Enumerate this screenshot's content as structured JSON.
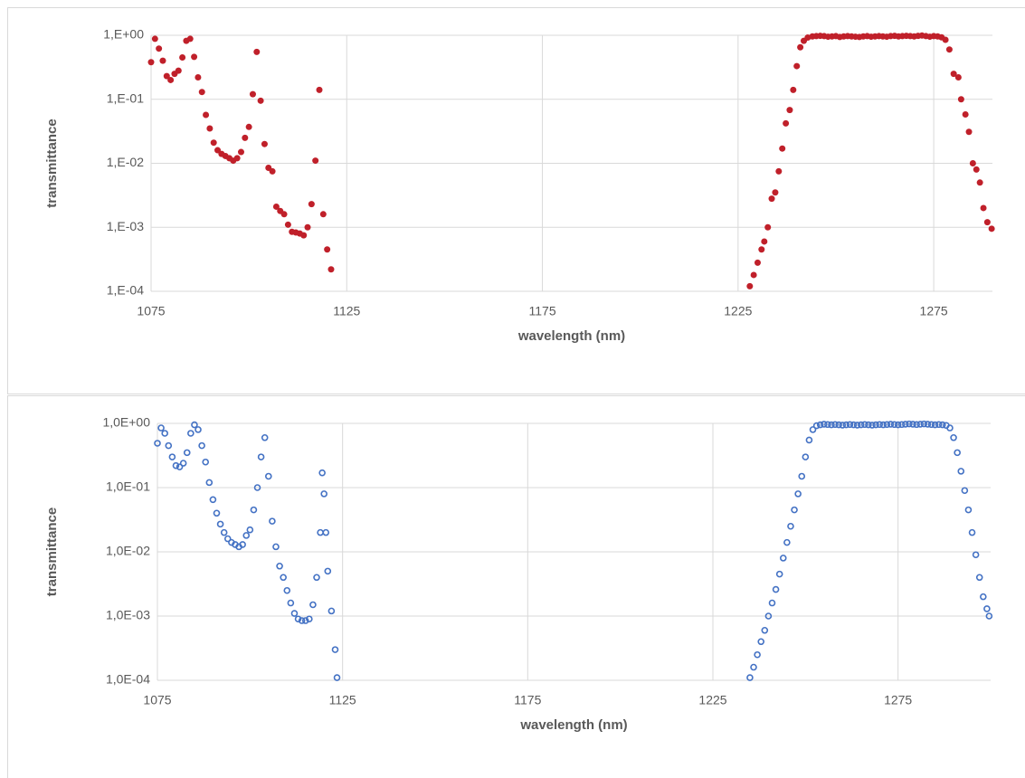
{
  "chart_data": [
    {
      "type": "scatter",
      "marker": "filled",
      "color": "#c0202a",
      "log_y": true,
      "grid": true,
      "xlabel": "wavelength (nm)",
      "ylabel": "transmittance",
      "xlim": [
        1075,
        1290
      ],
      "xticks": [
        1075,
        1125,
        1175,
        1225,
        1275
      ],
      "ylim": [
        0.0001,
        1
      ],
      "yticks": [
        {
          "value": 1,
          "label": "1,E+00"
        },
        {
          "value": 0.1,
          "label": "1,E-01"
        },
        {
          "value": 0.01,
          "label": "1,E-02"
        },
        {
          "value": 0.001,
          "label": "1,E-03"
        },
        {
          "value": 0.0001,
          "label": "1,E-04"
        }
      ],
      "x": [
        1075,
        1076,
        1077,
        1078,
        1079,
        1080,
        1081,
        1082,
        1083,
        1084,
        1085,
        1086,
        1087,
        1088,
        1089,
        1090,
        1091,
        1092,
        1093,
        1094,
        1095,
        1096,
        1097,
        1098,
        1099,
        1100,
        1101,
        1102,
        1103,
        1104,
        1105,
        1106,
        1107,
        1108,
        1109,
        1110,
        1111,
        1112,
        1113,
        1114,
        1115,
        1116,
        1117,
        1118,
        1119,
        1120,
        1121,
        1228,
        1229,
        1230,
        1231,
        1231.7,
        1232.6,
        1233.6,
        1234.5,
        1235.4,
        1236.3,
        1237.2,
        1238.2,
        1239.1,
        1240,
        1240.9,
        1241.8,
        1242.8,
        1244,
        1245,
        1246,
        1247,
        1248,
        1249,
        1250,
        1251,
        1252,
        1253,
        1254,
        1255,
        1256,
        1257,
        1258,
        1259,
        1260,
        1261,
        1262,
        1263,
        1264,
        1265,
        1266,
        1267,
        1268,
        1269,
        1270,
        1271,
        1272,
        1273,
        1274,
        1275,
        1276,
        1277,
        1278,
        1279,
        1280.1,
        1281.3,
        1282,
        1283.1,
        1284,
        1285,
        1285.9,
        1286.8,
        1287.7,
        1288.7,
        1289.8
      ],
      "values": [
        0.38,
        0.88,
        0.62,
        0.4,
        0.23,
        0.2,
        0.25,
        0.28,
        0.45,
        0.82,
        0.88,
        0.46,
        0.22,
        0.13,
        0.057,
        0.035,
        0.021,
        0.016,
        0.014,
        0.013,
        0.012,
        0.011,
        0.012,
        0.015,
        0.025,
        0.037,
        0.12,
        0.55,
        0.095,
        0.02,
        0.0085,
        0.0075,
        0.0021,
        0.0018,
        0.0016,
        0.0011,
        0.00085,
        0.00083,
        0.0008,
        0.00075,
        0.001,
        0.0023,
        0.011,
        0.14,
        0.0016,
        0.00045,
        0.00022,
        0.00012,
        0.00018,
        0.00028,
        0.00045,
        0.0006,
        0.001,
        0.0028,
        0.0035,
        0.0075,
        0.017,
        0.042,
        0.068,
        0.14,
        0.33,
        0.65,
        0.82,
        0.92,
        0.96,
        0.97,
        0.98,
        0.97,
        0.95,
        0.96,
        0.97,
        0.94,
        0.96,
        0.97,
        0.96,
        0.95,
        0.94,
        0.96,
        0.97,
        0.95,
        0.96,
        0.97,
        0.96,
        0.95,
        0.97,
        0.98,
        0.96,
        0.97,
        0.98,
        0.97,
        0.96,
        0.98,
        0.99,
        0.97,
        0.95,
        0.97,
        0.96,
        0.93,
        0.85,
        0.6,
        0.25,
        0.22,
        0.1,
        0.058,
        0.031,
        0.01,
        0.008,
        0.005,
        0.002,
        0.0012,
        0.00095
      ]
    },
    {
      "type": "scatter",
      "marker": "open",
      "color": "#4472c4",
      "log_y": true,
      "grid": true,
      "xlabel": "wavelength (nm)",
      "ylabel": "transmittance",
      "xlim": [
        1075,
        1300
      ],
      "xticks": [
        1075,
        1125,
        1175,
        1225,
        1275
      ],
      "ylim": [
        0.0001,
        1
      ],
      "yticks": [
        {
          "value": 1,
          "label": "1,0E+00"
        },
        {
          "value": 0.1,
          "label": "1,0E-01"
        },
        {
          "value": 0.01,
          "label": "1,0E-02"
        },
        {
          "value": 0.001,
          "label": "1,0E-03"
        },
        {
          "value": 0.0001,
          "label": "1,0E-04"
        }
      ],
      "x": [
        1075,
        1076,
        1077,
        1078,
        1079,
        1080,
        1081,
        1082,
        1083,
        1084,
        1085,
        1086,
        1087,
        1088,
        1089,
        1090,
        1091,
        1092,
        1093,
        1094,
        1095,
        1096,
        1097,
        1098,
        1099,
        1100,
        1101,
        1102,
        1103,
        1104,
        1105,
        1106,
        1107,
        1108,
        1109,
        1110,
        1111,
        1112,
        1113,
        1114,
        1115,
        1116,
        1117,
        1118,
        1119,
        1119.5,
        1120,
        1120.5,
        1121,
        1122,
        1123,
        1123.5,
        1235,
        1236,
        1237,
        1238,
        1239,
        1240,
        1241,
        1242,
        1243,
        1244,
        1245,
        1246,
        1247,
        1248,
        1249,
        1250,
        1251,
        1252,
        1253,
        1254,
        1255,
        1256,
        1257,
        1258,
        1259,
        1260,
        1261,
        1262,
        1263,
        1264,
        1265,
        1266,
        1267,
        1268,
        1269,
        1270,
        1271,
        1272,
        1273,
        1274,
        1275,
        1276,
        1277,
        1278,
        1279,
        1280,
        1281,
        1282,
        1283,
        1284,
        1285,
        1286,
        1287,
        1288,
        1289,
        1290,
        1291,
        1292,
        1293,
        1294,
        1295,
        1296,
        1297,
        1298,
        1299,
        1299.6
      ],
      "values": [
        0.49,
        0.85,
        0.7,
        0.45,
        0.3,
        0.22,
        0.21,
        0.24,
        0.35,
        0.7,
        0.95,
        0.8,
        0.45,
        0.25,
        0.12,
        0.065,
        0.04,
        0.027,
        0.02,
        0.016,
        0.014,
        0.013,
        0.012,
        0.013,
        0.018,
        0.022,
        0.045,
        0.1,
        0.3,
        0.6,
        0.15,
        0.03,
        0.012,
        0.006,
        0.004,
        0.0025,
        0.0016,
        0.0011,
        0.0009,
        0.00085,
        0.00085,
        0.0009,
        0.0015,
        0.004,
        0.02,
        0.17,
        0.08,
        0.02,
        0.005,
        0.0012,
        0.0003,
        0.00011,
        0.00011,
        0.00016,
        0.00025,
        0.0004,
        0.0006,
        0.001,
        0.0016,
        0.0026,
        0.0045,
        0.008,
        0.014,
        0.025,
        0.045,
        0.08,
        0.15,
        0.3,
        0.55,
        0.8,
        0.92,
        0.95,
        0.97,
        0.96,
        0.95,
        0.96,
        0.95,
        0.94,
        0.95,
        0.96,
        0.95,
        0.94,
        0.95,
        0.96,
        0.95,
        0.94,
        0.95,
        0.96,
        0.95,
        0.96,
        0.97,
        0.96,
        0.95,
        0.96,
        0.97,
        0.98,
        0.97,
        0.96,
        0.97,
        0.98,
        0.97,
        0.96,
        0.95,
        0.96,
        0.95,
        0.93,
        0.85,
        0.6,
        0.35,
        0.18,
        0.09,
        0.045,
        0.02,
        0.009,
        0.004,
        0.002,
        0.0013,
        0.001
      ]
    }
  ]
}
